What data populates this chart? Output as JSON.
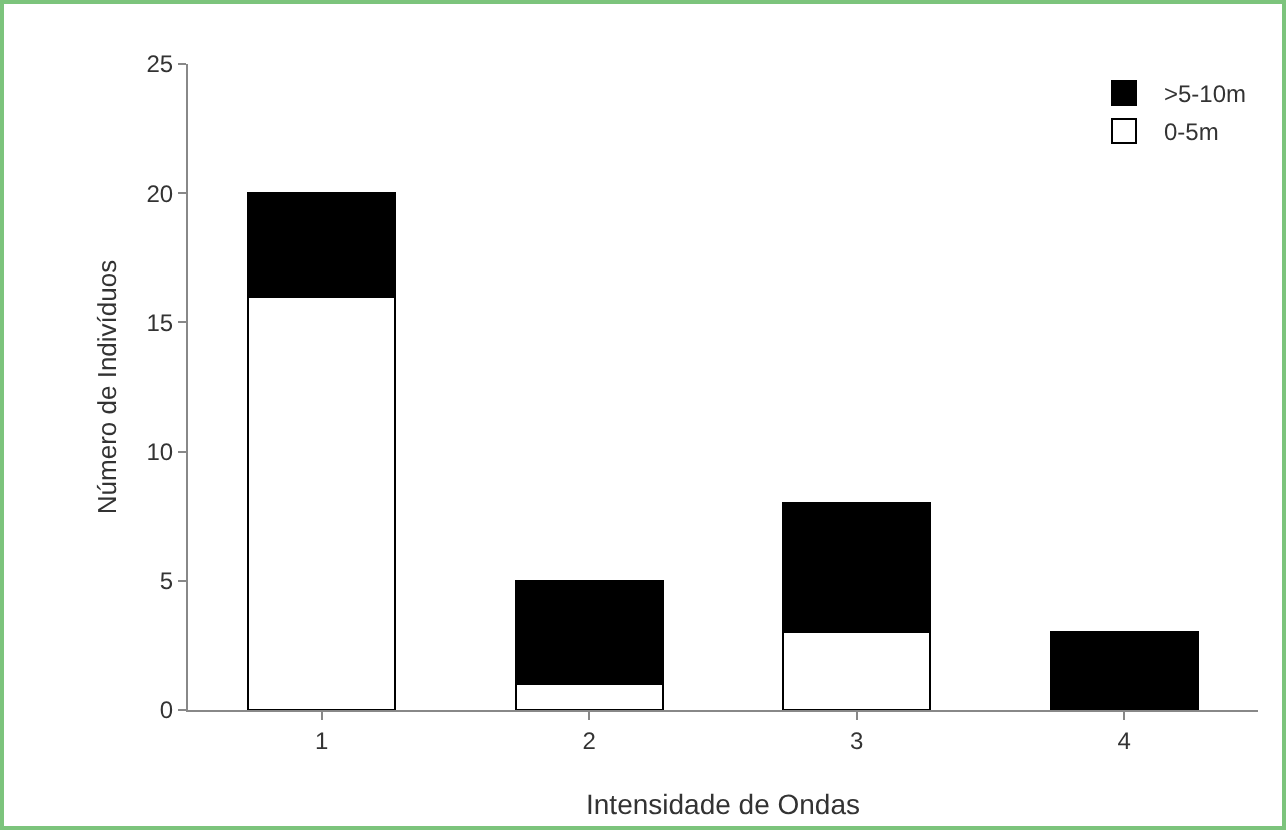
{
  "chart_data": {
    "type": "bar",
    "stacked": true,
    "xlabel": "Intensidade de Ondas",
    "ylabel": "Número de Indivíduos",
    "categories": [
      "1",
      "2",
      "3",
      "4"
    ],
    "series": [
      {
        "name": "0-5m",
        "color": "#ffffff",
        "values": [
          16,
          1,
          3,
          0
        ]
      },
      {
        "name": ">5-10m",
        "color": "#000000",
        "values": [
          4,
          4,
          5,
          3
        ]
      }
    ],
    "ylim": [
      0,
      25
    ],
    "yticks": [
      0,
      5,
      10,
      15,
      20,
      25
    ],
    "grid": false,
    "legend": "top right"
  }
}
